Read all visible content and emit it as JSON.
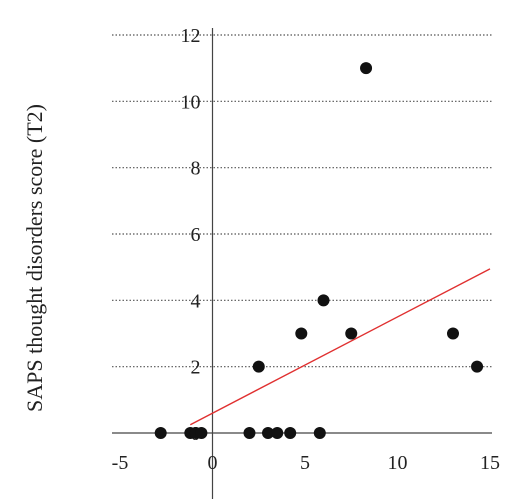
{
  "chart_data": {
    "type": "scatter",
    "title": "",
    "xlabel": "",
    "ylabel": "SAPS thought disorders score (T2)",
    "xlim": [
      -5,
      15
    ],
    "ylim": [
      0,
      12
    ],
    "xticks": [
      -5,
      0,
      5,
      10,
      15
    ],
    "yticks": [
      0,
      2,
      4,
      6,
      8,
      10,
      12
    ],
    "grid": true,
    "legend": "none",
    "point_color": "#111111",
    "series": [
      {
        "points": [
          {
            "x": -2.8,
            "y": 0
          },
          {
            "x": -1.2,
            "y": 0
          },
          {
            "x": -0.9,
            "y": 0
          },
          {
            "x": -0.6,
            "y": 0
          },
          {
            "x": 2.0,
            "y": 0
          },
          {
            "x": 3.0,
            "y": 0
          },
          {
            "x": 3.5,
            "y": 0
          },
          {
            "x": 4.2,
            "y": 0
          },
          {
            "x": 5.8,
            "y": 0
          },
          {
            "x": 2.5,
            "y": 2
          },
          {
            "x": 4.8,
            "y": 3
          },
          {
            "x": 6.0,
            "y": 4
          },
          {
            "x": 7.5,
            "y": 3
          },
          {
            "x": 8.3,
            "y": 11
          },
          {
            "x": 13.0,
            "y": 3
          },
          {
            "x": 14.3,
            "y": 2
          }
        ]
      }
    ],
    "fit_line": {
      "color": "#e03030",
      "x": [
        -1.2,
        15
      ],
      "y": [
        0.25,
        4.95
      ]
    }
  }
}
